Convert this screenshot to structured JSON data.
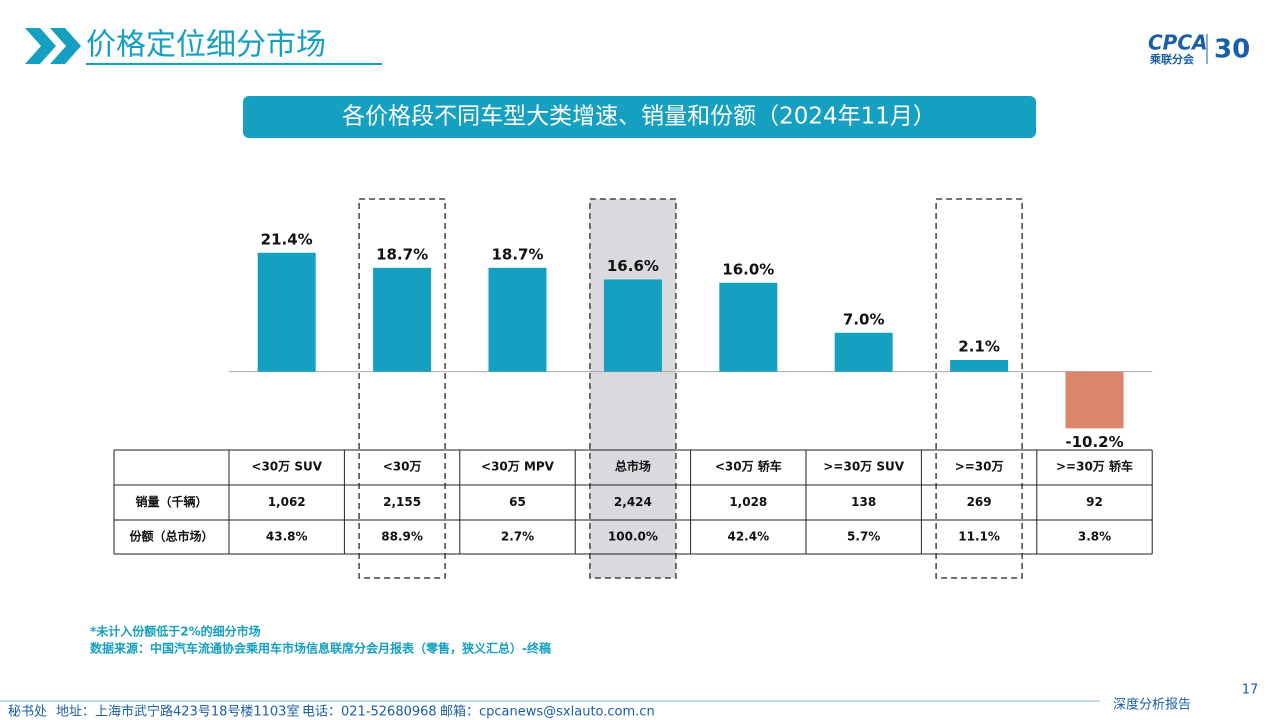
{
  "header": {
    "title": "价格定位细分市场",
    "logo": "CPCA",
    "logo_sub": "乘联分会",
    "logo_badge": "30"
  },
  "chart_data": {
    "type": "bar",
    "title": "各价格段不同车型大类增速、销量和份额（2024年11月）",
    "categories": [
      "<30万 SUV",
      "<30万",
      "<30万 MPV",
      "总市场",
      "<30万 轿车",
      ">=30万 SUV",
      ">=30万",
      ">=30万 轿车"
    ],
    "values": [
      21.4,
      18.7,
      18.7,
      16.6,
      16.0,
      7.0,
      2.1,
      -10.2
    ],
    "value_labels": [
      "21.4%",
      "18.7%",
      "18.7%",
      "16.6%",
      "16.0%",
      "7.0%",
      "2.1%",
      "-10.2%"
    ],
    "color": "#159fc1",
    "negative_color": "#d9866a",
    "ylim": [
      -15,
      30
    ]
  },
  "table": {
    "rows": [
      {
        "label": "销量（千辆）",
        "cells": [
          "1,062",
          "2,155",
          "65",
          "2,424",
          "1,028",
          "138",
          "269",
          "92"
        ]
      },
      {
        "label": "份额（总市场）",
        "cells": [
          "43.8%",
          "88.9%",
          "2.7%",
          "100.0%",
          "42.4%",
          "5.7%",
          "11.1%",
          "3.8%"
        ]
      }
    ]
  },
  "notes": {
    "note": "*未计入份额低于2%的细分市场",
    "source": "数据来源：中国汽车流通协会乘用车市场信息联席分会月报表（零售，狭义汇总）-终稿"
  },
  "footer": {
    "org": "秘书处",
    "address": "地址：上海市武宁路423号18号楼1103室",
    "phone": "电话：021-52680968",
    "email": "邮箱：cpcanews@sxlauto.com.cn",
    "page": 17,
    "report": "深度分析报告"
  }
}
